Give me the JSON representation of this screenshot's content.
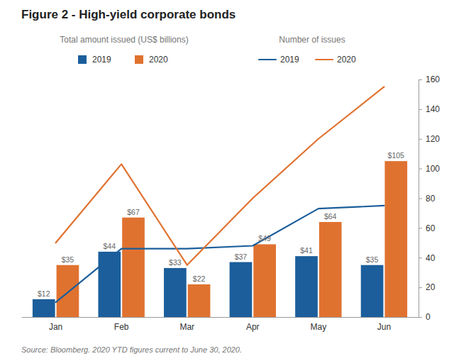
{
  "chart_data": {
    "type": "bar",
    "title": "Figure 2 - High-yield corporate bonds",
    "annotations": [
      "Total amount issued (US$ billions)",
      "Number of issues",
      "Source: Bloomberg. 2020 YTD figures current to June 30, 2020."
    ],
    "categories": [
      "Jan",
      "Feb",
      "Mar",
      "Apr",
      "May",
      "Jun"
    ],
    "series": [
      {
        "name": "2019",
        "type": "bar",
        "color": "#1B5E9B",
        "values": [
          12,
          44,
          33,
          37,
          41,
          35
        ],
        "data_labels": true,
        "value_labels": [
          "$12",
          "$44",
          "$33",
          "$37",
          "$41",
          "$35"
        ]
      },
      {
        "name": "2020",
        "type": "bar",
        "color": "#E07230",
        "values": [
          35,
          67,
          22,
          49,
          64,
          105
        ],
        "data_labels": true,
        "value_labels": [
          "$35",
          "$67",
          "$22",
          "$49",
          "$64",
          "$105"
        ]
      },
      {
        "name": "2019",
        "type": "line",
        "color": "#1B5E9B",
        "values": [
          10,
          46,
          46,
          48,
          73,
          75
        ]
      },
      {
        "name": "2020",
        "type": "line",
        "color": "#E07230",
        "values": [
          50,
          103,
          35,
          80,
          120,
          155
        ]
      }
    ],
    "ylim": [
      0,
      160
    ],
    "yticks": [
      0,
      20,
      40,
      60,
      80,
      100,
      120,
      140,
      160
    ],
    "grid": false,
    "legend": "top"
  }
}
